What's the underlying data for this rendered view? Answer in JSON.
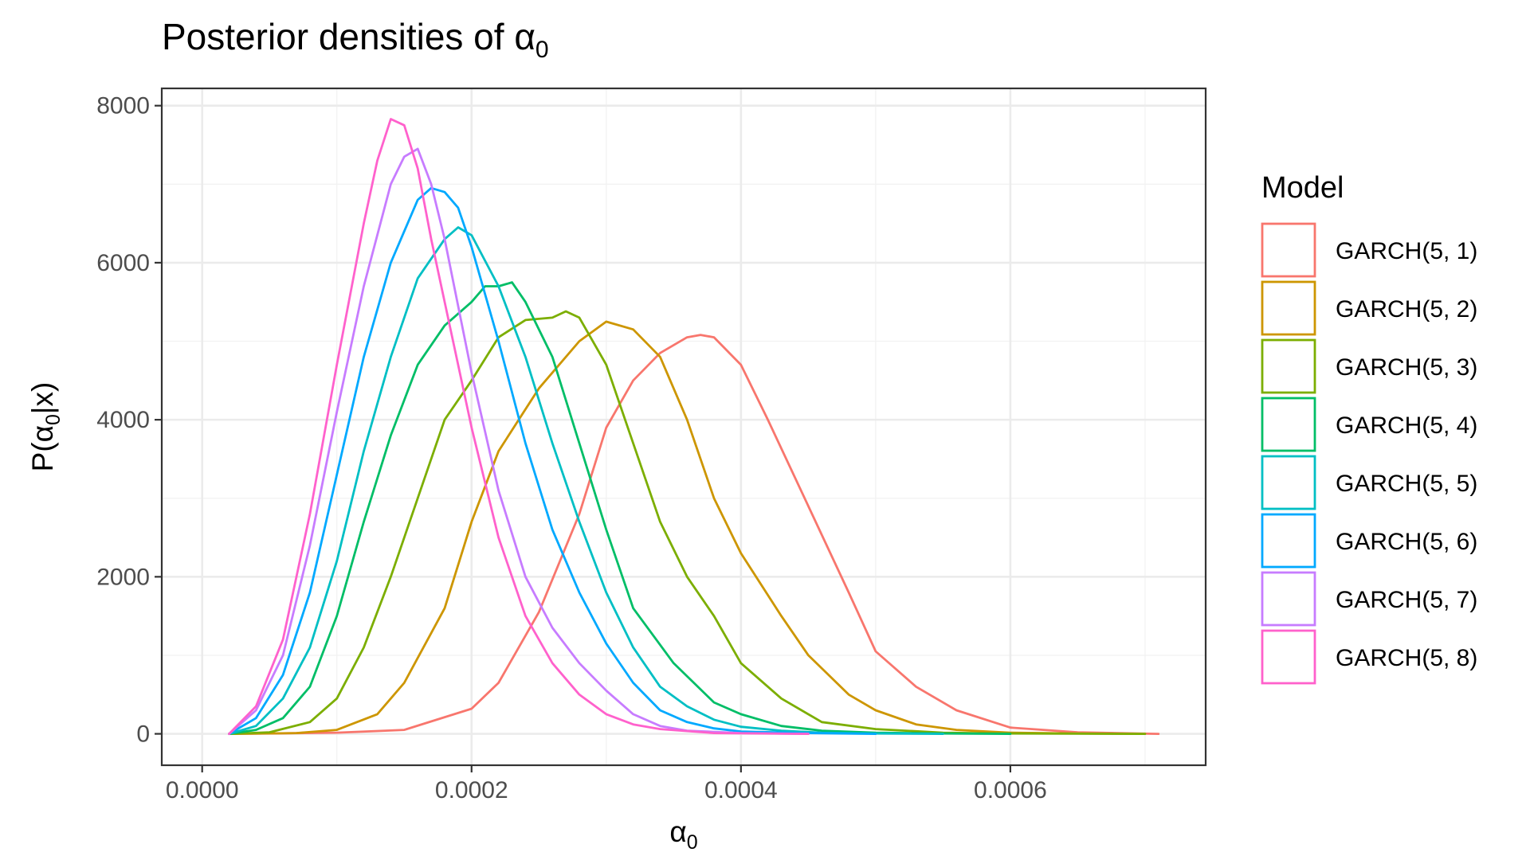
{
  "chart_data": {
    "type": "line",
    "title": "Posterior densities of",
    "title_symbol": "α",
    "title_subscript": "0",
    "xlabel_symbol": "α",
    "xlabel_subscript": "0",
    "ylabel_prefix": "P(",
    "ylabel_symbol": "α",
    "ylabel_subscript": "0",
    "ylabel_suffix": "|x)",
    "xlim": [
      -3e-05,
      0.000745
    ],
    "ylim": [
      -400,
      8220
    ],
    "x_ticks": [
      0,
      0.0002,
      0.0004,
      0.0006
    ],
    "x_tick_labels": [
      "0.0000",
      "0.0002",
      "0.0004",
      "0.0006"
    ],
    "y_ticks": [
      0,
      2000,
      4000,
      6000,
      8000
    ],
    "y_tick_labels": [
      "0",
      "2000",
      "4000",
      "6000",
      "8000"
    ],
    "grid": true,
    "legend": {
      "title": "Model",
      "placement": "right"
    },
    "series": [
      {
        "name": "GARCH(5, 1)",
        "color": "#F8766D",
        "x": [
          2e-05,
          5e-05,
          0.0001,
          0.00015,
          0.0002,
          0.00022,
          0.00025,
          0.00028,
          0.0003,
          0.00032,
          0.00034,
          0.00036,
          0.00037,
          0.00038,
          0.0004,
          0.00042,
          0.00045,
          0.00048,
          0.0005,
          0.00053,
          0.00056,
          0.0006,
          0.00065,
          0.00071
        ],
        "y": [
          0,
          5,
          15,
          50,
          320,
          650,
          1550,
          2800,
          3900,
          4500,
          4850,
          5050,
          5080,
          5050,
          4700,
          4000,
          2900,
          1800,
          1050,
          600,
          300,
          80,
          20,
          0
        ]
      },
      {
        "name": "GARCH(5, 2)",
        "color": "#CD9600",
        "x": [
          2e-05,
          7e-05,
          0.0001,
          0.00013,
          0.00015,
          0.00018,
          0.0002,
          0.00022,
          0.00025,
          0.00028,
          0.0003,
          0.00032,
          0.00034,
          0.00036,
          0.00038,
          0.0004,
          0.00043,
          0.00045,
          0.00048,
          0.0005,
          0.00053,
          0.00056,
          0.0006,
          0.00065,
          0.0007
        ],
        "y": [
          0,
          10,
          50,
          250,
          650,
          1600,
          2700,
          3600,
          4400,
          5000,
          5250,
          5150,
          4800,
          4000,
          3000,
          2300,
          1500,
          1000,
          500,
          300,
          120,
          50,
          15,
          5,
          0
        ]
      },
      {
        "name": "GARCH(5, 3)",
        "color": "#7CAE00",
        "x": [
          2e-05,
          5e-05,
          8e-05,
          0.0001,
          0.00012,
          0.00014,
          0.00016,
          0.00018,
          0.0002,
          0.00022,
          0.00024,
          0.00026,
          0.00027,
          0.00028,
          0.0003,
          0.00032,
          0.00034,
          0.00036,
          0.00038,
          0.0004,
          0.00043,
          0.00046,
          0.0005,
          0.00055,
          0.0006,
          0.0007
        ],
        "y": [
          0,
          20,
          150,
          450,
          1100,
          2000,
          3000,
          4000,
          4500,
          5050,
          5270,
          5300,
          5380,
          5300,
          4700,
          3700,
          2700,
          2000,
          1500,
          900,
          450,
          150,
          60,
          15,
          5,
          0
        ]
      },
      {
        "name": "GARCH(5, 4)",
        "color": "#00BE67",
        "x": [
          2e-05,
          4e-05,
          6e-05,
          8e-05,
          0.0001,
          0.00012,
          0.00014,
          0.00016,
          0.00018,
          0.0002,
          0.00021,
          0.00022,
          0.00023,
          0.00024,
          0.00026,
          0.00028,
          0.0003,
          0.00032,
          0.00035,
          0.00038,
          0.0004,
          0.00043,
          0.00046,
          0.0005,
          0.00055,
          0.0006
        ],
        "y": [
          0,
          50,
          200,
          600,
          1500,
          2700,
          3800,
          4700,
          5200,
          5500,
          5700,
          5700,
          5750,
          5500,
          4800,
          3700,
          2600,
          1600,
          900,
          400,
          250,
          100,
          40,
          15,
          5,
          0
        ]
      },
      {
        "name": "GARCH(5, 5)",
        "color": "#00BFC4",
        "x": [
          2e-05,
          4e-05,
          6e-05,
          8e-05,
          0.0001,
          0.00012,
          0.00014,
          0.00016,
          0.00018,
          0.00019,
          0.0002,
          0.00022,
          0.00024,
          0.00026,
          0.00028,
          0.0003,
          0.00032,
          0.00034,
          0.00036,
          0.00038,
          0.0004,
          0.00043,
          0.00046,
          0.0005,
          0.00055
        ],
        "y": [
          0,
          100,
          450,
          1100,
          2200,
          3600,
          4800,
          5800,
          6300,
          6450,
          6350,
          5700,
          4800,
          3700,
          2700,
          1800,
          1100,
          600,
          350,
          180,
          90,
          40,
          15,
          5,
          0
        ]
      },
      {
        "name": "GARCH(5, 6)",
        "color": "#00A9FF",
        "x": [
          2e-05,
          4e-05,
          6e-05,
          8e-05,
          0.0001,
          0.00012,
          0.00014,
          0.00016,
          0.00017,
          0.00018,
          0.00019,
          0.0002,
          0.00022,
          0.00024,
          0.00026,
          0.00028,
          0.0003,
          0.00032,
          0.00034,
          0.00036,
          0.00038,
          0.0004,
          0.00045,
          0.0005
        ],
        "y": [
          0,
          200,
          750,
          1800,
          3300,
          4800,
          6000,
          6800,
          6950,
          6900,
          6700,
          6200,
          5000,
          3700,
          2600,
          1800,
          1150,
          650,
          300,
          150,
          70,
          30,
          10,
          0
        ]
      },
      {
        "name": "GARCH(5, 7)",
        "color": "#C77CFF",
        "x": [
          2e-05,
          4e-05,
          6e-05,
          8e-05,
          0.0001,
          0.00012,
          0.00014,
          0.00015,
          0.00016,
          0.00017,
          0.00018,
          0.0002,
          0.00022,
          0.00024,
          0.00026,
          0.00028,
          0.0003,
          0.00032,
          0.00034,
          0.00036,
          0.0004,
          0.00045
        ],
        "y": [
          0,
          300,
          1000,
          2400,
          4100,
          5700,
          7000,
          7350,
          7450,
          7000,
          6300,
          4600,
          3100,
          2000,
          1350,
          900,
          550,
          250,
          100,
          40,
          10,
          0
        ]
      },
      {
        "name": "GARCH(5, 8)",
        "color": "#FF61CC",
        "x": [
          2e-05,
          4e-05,
          6e-05,
          8e-05,
          0.0001,
          0.00012,
          0.00013,
          0.00014,
          0.00015,
          0.00016,
          0.00017,
          0.00018,
          0.0002,
          0.00022,
          0.00024,
          0.00026,
          0.00028,
          0.0003,
          0.00032,
          0.00034,
          0.00038,
          0.00045
        ],
        "y": [
          0,
          350,
          1200,
          2800,
          4700,
          6500,
          7300,
          7830,
          7750,
          7200,
          6300,
          5500,
          3900,
          2500,
          1500,
          900,
          500,
          250,
          120,
          60,
          10,
          0
        ]
      }
    ]
  }
}
